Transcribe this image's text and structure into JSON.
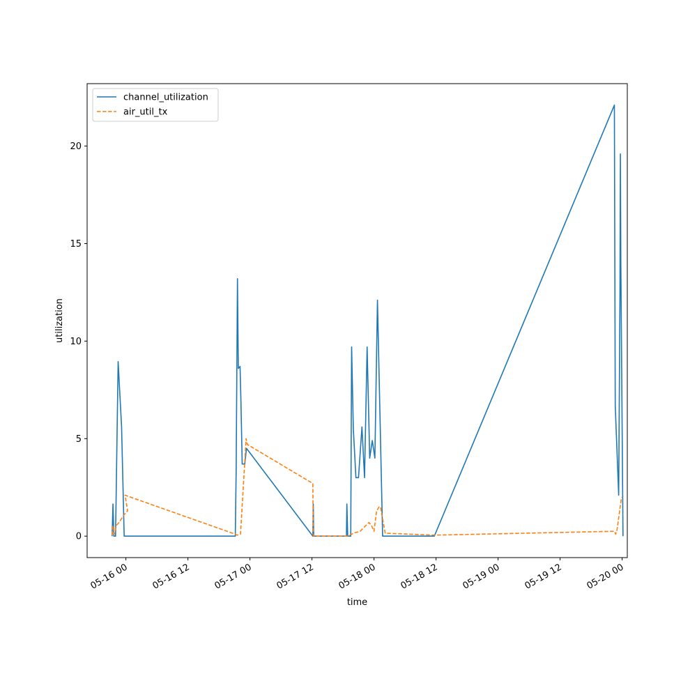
{
  "chart_data": {
    "type": "line",
    "xlabel": "time",
    "ylabel": "utilization",
    "x_ticks": [
      "05-16 00",
      "05-16 12",
      "05-17 00",
      "05-17 12",
      "05-18 00",
      "05-18 12",
      "05-19 00",
      "05-19 12",
      "05-20 00"
    ],
    "y_ticks": [
      "0",
      "5",
      "10",
      "15",
      "20"
    ],
    "xlim": [
      "05-15 16:30",
      "05-20 01:00"
    ],
    "ylim": [
      -1.1,
      23.2
    ],
    "legend_position": "upper-left",
    "grid": false,
    "series": [
      {
        "name": "channel_utilization",
        "color": "#1f77b4",
        "style": "solid",
        "points": [
          [
            "05-15 21:20",
            0
          ],
          [
            "05-15 21:30",
            1.65
          ],
          [
            "05-15 21:40",
            0
          ],
          [
            "05-15 22:00",
            0
          ],
          [
            "05-15 22:30",
            8.95
          ],
          [
            "05-15 23:10",
            5.6
          ],
          [
            "05-15 23:40",
            0
          ],
          [
            "05-16 21:10",
            0
          ],
          [
            "05-16 21:20",
            3.4
          ],
          [
            "05-16 21:35",
            13.2
          ],
          [
            "05-16 21:45",
            8.6
          ],
          [
            "05-16 22:05",
            8.7
          ],
          [
            "05-16 22:15",
            7.0
          ],
          [
            "05-16 22:30",
            3.7
          ],
          [
            "05-16 23:00",
            3.7
          ],
          [
            "05-16 23:20",
            4.5
          ],
          [
            "05-17 12:10",
            0
          ],
          [
            "05-17 12:15",
            1.65
          ],
          [
            "05-17 12:20",
            0
          ],
          [
            "05-17 18:40",
            0
          ],
          [
            "05-17 18:45",
            1.65
          ],
          [
            "05-17 18:55",
            0
          ],
          [
            "05-17 19:30",
            0
          ],
          [
            "05-17 19:40",
            9.7
          ],
          [
            "05-17 20:00",
            5.5
          ],
          [
            "05-17 20:30",
            3.0
          ],
          [
            "05-17 21:00",
            3.0
          ],
          [
            "05-17 21:40",
            5.6
          ],
          [
            "05-17 22:10",
            3.0
          ],
          [
            "05-17 22:40",
            9.7
          ],
          [
            "05-17 23:10",
            4.0
          ],
          [
            "05-17 23:40",
            4.9
          ],
          [
            "05-18 00:10",
            4.0
          ],
          [
            "05-18 00:40",
            12.1
          ],
          [
            "05-18 01:40",
            0
          ],
          [
            "05-18 11:40",
            0
          ],
          [
            "05-19 22:30",
            22.1
          ],
          [
            "05-19 22:40",
            6.7
          ],
          [
            "05-19 23:20",
            2.1
          ],
          [
            "05-19 23:35",
            12.5
          ],
          [
            "05-19 23:40",
            19.6
          ],
          [
            "05-19 23:45",
            14.0
          ],
          [
            "05-20 00:10",
            0
          ]
        ]
      },
      {
        "name": "air_util_tx",
        "color": "#ff7f0e",
        "style": "dashed",
        "points": [
          [
            "05-15 21:20",
            0.05
          ],
          [
            "05-15 21:30",
            0.55
          ],
          [
            "05-15 21:45",
            0.1
          ],
          [
            "05-15 22:10",
            0.55
          ],
          [
            "05-15 22:40",
            0.7
          ],
          [
            "05-15 23:40",
            1.1
          ],
          [
            "05-16 00:20",
            1.3
          ],
          [
            "05-15 23:50",
            2.1
          ],
          [
            "05-16 21:10",
            0.1
          ],
          [
            "05-16 21:30",
            0.05
          ],
          [
            "05-16 22:10",
            0.1
          ],
          [
            "05-16 23:00",
            3.8
          ],
          [
            "05-16 23:15",
            5.0
          ],
          [
            "05-16 23:30",
            4.7
          ],
          [
            "05-17 12:10",
            2.7
          ],
          [
            "05-17 12:15",
            0
          ],
          [
            "05-17 19:00",
            0
          ],
          [
            "05-17 20:00",
            0.15
          ],
          [
            "05-17 21:20",
            0.25
          ],
          [
            "05-17 23:00",
            0.7
          ],
          [
            "05-17 23:30",
            0.55
          ],
          [
            "05-18 00:00",
            0.25
          ],
          [
            "05-18 00:30",
            1.3
          ],
          [
            "05-18 01:00",
            1.5
          ],
          [
            "05-18 01:15",
            1.5
          ],
          [
            "05-18 02:10",
            0.15
          ],
          [
            "05-18 11:40",
            0.05
          ],
          [
            "05-19 22:30",
            0.25
          ],
          [
            "05-19 22:45",
            0.1
          ],
          [
            "05-19 23:00",
            0.3
          ],
          [
            "05-19 23:50",
            1.9
          ],
          [
            "05-20 00:00",
            2.0
          ]
        ]
      }
    ]
  }
}
